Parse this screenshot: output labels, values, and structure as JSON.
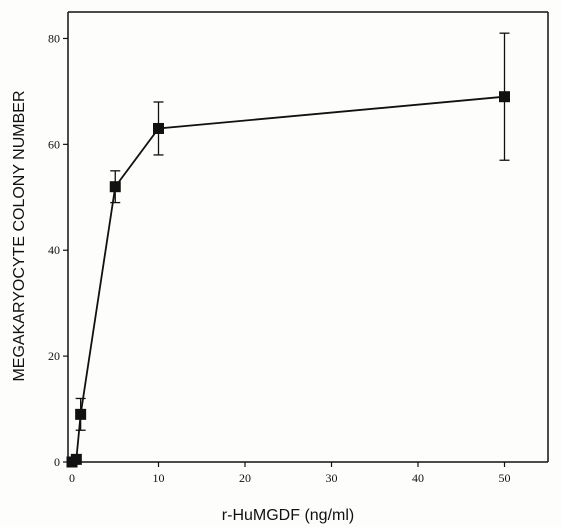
{
  "chart_data": {
    "type": "line",
    "title": "",
    "xlabel": "r-HuMGDF (ng/ml)",
    "ylabel": "MEGAKARYOCYTE COLONY NUMBER",
    "xlim": [
      0,
      55
    ],
    "ylim": [
      0,
      85
    ],
    "x_ticks": [
      0,
      10,
      20,
      30,
      40,
      50
    ],
    "y_ticks": [
      0,
      20,
      40,
      60,
      80
    ],
    "grid": false,
    "series": [
      {
        "x": [
          0,
          0.5,
          1,
          5,
          10,
          50
        ],
        "y": [
          0,
          0.5,
          9,
          52,
          63,
          69
        ],
        "y_err_low": [
          0,
          0.5,
          3,
          3,
          5,
          12
        ],
        "y_err_high": [
          0,
          0.5,
          3,
          3,
          5,
          12
        ]
      }
    ]
  },
  "colors": {
    "ink": "#111111",
    "background": "#fdfdfb"
  }
}
